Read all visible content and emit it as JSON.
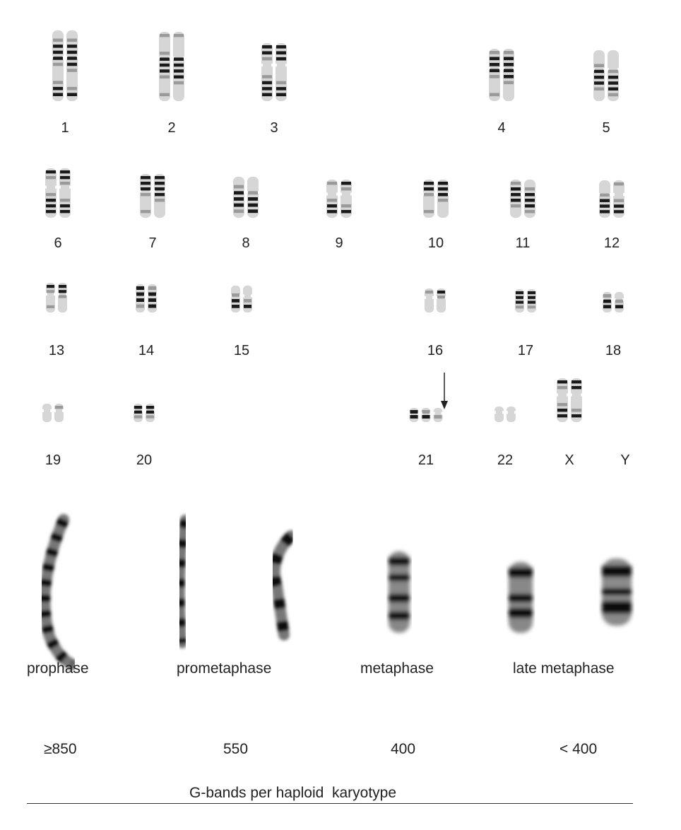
{
  "karyogram": {
    "chromosomes": [
      {
        "label": "1",
        "copies": 2,
        "size": 1.0
      },
      {
        "label": "2",
        "copies": 2,
        "size": 0.98
      },
      {
        "label": "3",
        "copies": 2,
        "size": 0.82
      },
      {
        "label": "4",
        "copies": 2,
        "size": 0.74
      },
      {
        "label": "5",
        "copies": 2,
        "size": 0.72
      },
      {
        "label": "6",
        "copies": 2,
        "size": 0.7
      },
      {
        "label": "7",
        "copies": 2,
        "size": 0.62
      },
      {
        "label": "8",
        "copies": 2,
        "size": 0.58
      },
      {
        "label": "9",
        "copies": 2,
        "size": 0.54
      },
      {
        "label": "10",
        "copies": 2,
        "size": 0.54
      },
      {
        "label": "11",
        "copies": 2,
        "size": 0.54
      },
      {
        "label": "12",
        "copies": 2,
        "size": 0.53
      },
      {
        "label": "13",
        "copies": 2,
        "size": 0.42
      },
      {
        "label": "14",
        "copies": 2,
        "size": 0.4
      },
      {
        "label": "15",
        "copies": 2,
        "size": 0.38
      },
      {
        "label": "16",
        "copies": 2,
        "size": 0.34
      },
      {
        "label": "17",
        "copies": 2,
        "size": 0.33
      },
      {
        "label": "18",
        "copies": 2,
        "size": 0.29
      },
      {
        "label": "19",
        "copies": 2,
        "size": 0.26
      },
      {
        "label": "20",
        "copies": 2,
        "size": 0.26
      },
      {
        "label": "21",
        "copies": 3,
        "size": 0.2
      },
      {
        "label": "22",
        "copies": 2,
        "size": 0.22
      },
      {
        "label": "X",
        "copies": 2,
        "size": 0.62
      },
      {
        "label": "Y",
        "copies": 0,
        "size": 0.0
      }
    ],
    "trisomy_marker_on": "21"
  },
  "stages": [
    {
      "name": "prophase",
      "bands": "≥850"
    },
    {
      "name": "prometaphase",
      "bands": "550"
    },
    {
      "name": "metaphase",
      "bands": "400"
    },
    {
      "name": "late metaphase",
      "bands": "< 400"
    }
  ],
  "axis_caption": "G-bands per haploid  karyotype",
  "colors": {
    "band_dark": "#1a1a1a",
    "band_light": "#9a9a9a",
    "chromatid_bg": "#d6d6d6",
    "text": "#222222"
  }
}
